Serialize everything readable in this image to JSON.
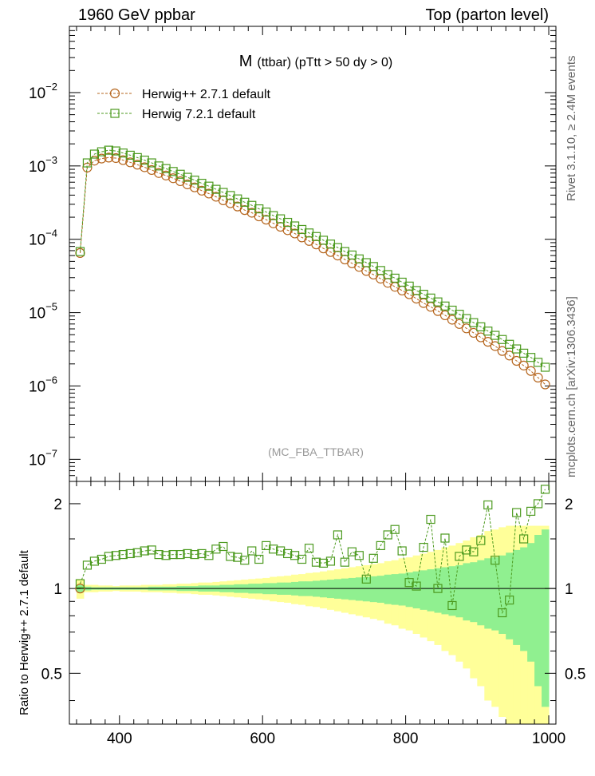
{
  "header": {
    "left": "1960 GeV ppbar",
    "right": "Top (parton level)"
  },
  "side_labels": {
    "rivet": "Rivet 3.1.10, ≥ 2.4M events",
    "site": "mcplots.cern.ch [arXiv:1306.3436]"
  },
  "colors": {
    "herwigpp": "#b5651d",
    "herwig7": "#4c9a1f",
    "band_inner": "#90f090",
    "band_outer": "#ffff99"
  },
  "chart_data": [
    {
      "type": "line",
      "title_main": "M",
      "title_rest": "(ttbar) (pTtt > 50 dy > 0)",
      "analysis_tag": "(MC_FBA_TTBAR)",
      "yscale": "log",
      "xlim": [
        330,
        1010
      ],
      "ylim": [
        5e-08,
        0.08
      ],
      "yticks": [
        {
          "value": 1e-07,
          "base": "10",
          "exp": "−7"
        },
        {
          "value": 1e-06,
          "base": "10",
          "exp": "−6"
        },
        {
          "value": 1e-05,
          "base": "10",
          "exp": "−5"
        },
        {
          "value": 0.0001,
          "base": "10",
          "exp": "−4"
        },
        {
          "value": 0.001,
          "base": "10",
          "exp": "−3"
        },
        {
          "value": 0.01,
          "base": "10",
          "exp": "−2"
        }
      ],
      "legend_position": "top-left",
      "x": [
        345,
        355,
        365,
        375,
        385,
        395,
        405,
        415,
        425,
        435,
        445,
        455,
        465,
        475,
        485,
        495,
        505,
        515,
        525,
        535,
        545,
        555,
        565,
        575,
        585,
        595,
        605,
        615,
        625,
        635,
        645,
        655,
        665,
        675,
        685,
        695,
        705,
        715,
        725,
        735,
        745,
        755,
        765,
        775,
        785,
        795,
        805,
        815,
        825,
        835,
        845,
        855,
        865,
        875,
        885,
        895,
        905,
        915,
        925,
        935,
        945,
        955,
        965,
        975,
        985,
        995
      ],
      "series": [
        {
          "name": "Herwig++ 2.7.1 default",
          "marker": "circle",
          "values": [
            6.5e-05,
            0.00095,
            0.00118,
            0.00126,
            0.0013,
            0.00128,
            0.0012,
            0.00112,
            0.00104,
            0.00096,
            0.00088,
            0.0008,
            0.00074,
            0.00068,
            0.00062,
            0.00056,
            0.00051,
            0.00046,
            0.00042,
            0.00038,
            0.00034,
            0.00031,
            0.00028,
            0.00025,
            0.00023,
            0.000205,
            0.000185,
            0.000165,
            0.000148,
            0.000133,
            0.00012,
            0.000106,
            9.5e-05,
            8.5e-05,
            7.5e-05,
            6.7e-05,
            6e-05,
            5.3e-05,
            4.7e-05,
            4.2e-05,
            3.7e-05,
            3.3e-05,
            2.9e-05,
            2.55e-05,
            2.25e-05,
            2e-05,
            1.78e-05,
            1.55e-05,
            1.35e-05,
            1.2e-05,
            1.05e-05,
            9.2e-06,
            8e-06,
            7e-06,
            6.1e-06,
            5.3e-06,
            4.6e-06,
            4e-06,
            3.5e-06,
            3e-06,
            2.6e-06,
            2.2e-06,
            1.9e-06,
            1.6e-06,
            1.3e-06,
            1.05e-06
          ]
        },
        {
          "name": "Herwig 7.2.1 default",
          "marker": "square",
          "values": [
            6.8e-05,
            0.0011,
            0.00145,
            0.00156,
            0.00164,
            0.0016,
            0.0015,
            0.0014,
            0.0013,
            0.0012,
            0.0011,
            0.001,
            0.00092,
            0.00084,
            0.00077,
            0.0007,
            0.00064,
            0.00058,
            0.00053,
            0.00048,
            0.000435,
            0.000395,
            0.000355,
            0.00032,
            0.00029,
            0.00026,
            0.000235,
            0.00021,
            0.00019,
            0.00017,
            0.000152,
            0.000136,
            0.000122,
            0.000109,
            9.7e-05,
            8.6e-05,
            7.7e-05,
            6.8e-05,
            6.1e-05,
            5.4e-05,
            4.8e-05,
            4.25e-05,
            3.75e-05,
            3.3e-05,
            2.95e-05,
            2.6e-05,
            2.3e-05,
            2e-05,
            1.78e-05,
            1.58e-05,
            1.4e-05,
            1.23e-05,
            1.08e-05,
            9.5e-06,
            8.3e-06,
            7.3e-06,
            6.4e-06,
            5.6e-06,
            4.9e-06,
            4.3e-06,
            3.7e-06,
            3.2e-06,
            2.8e-06,
            2.45e-06,
            2.1e-06,
            1.8e-06
          ]
        }
      ]
    },
    {
      "type": "line",
      "ylabel": "Ratio to Herwig++ 2.7.1 default",
      "xlim": [
        330,
        1010
      ],
      "ylim": [
        0.33,
        2.4
      ],
      "yticks": [
        0.5,
        1,
        2
      ],
      "yticklabels": [
        "0.5",
        "1",
        "2"
      ],
      "xticks": [
        400,
        600,
        800,
        1000
      ],
      "xticklabels": [
        "400",
        "600",
        "800",
        "1000"
      ],
      "x": [
        345,
        355,
        365,
        375,
        385,
        395,
        405,
        415,
        425,
        435,
        445,
        455,
        465,
        475,
        485,
        495,
        505,
        515,
        525,
        535,
        545,
        555,
        565,
        575,
        585,
        595,
        605,
        615,
        625,
        635,
        645,
        655,
        665,
        675,
        685,
        695,
        705,
        715,
        725,
        735,
        745,
        755,
        765,
        775,
        785,
        795,
        805,
        815,
        825,
        835,
        845,
        855,
        865,
        875,
        885,
        895,
        905,
        915,
        925,
        935,
        945,
        955,
        965,
        975,
        985,
        995
      ],
      "band_inner": [
        0.97,
        0.985,
        0.99,
        0.99,
        0.99,
        0.99,
        0.99,
        0.99,
        0.99,
        0.99,
        0.985,
        0.985,
        0.985,
        0.985,
        0.98,
        0.98,
        0.98,
        0.975,
        0.975,
        0.975,
        0.97,
        0.97,
        0.965,
        0.965,
        0.96,
        0.96,
        0.955,
        0.955,
        0.95,
        0.95,
        0.945,
        0.94,
        0.94,
        0.935,
        0.93,
        0.925,
        0.92,
        0.915,
        0.91,
        0.905,
        0.9,
        0.895,
        0.89,
        0.88,
        0.875,
        0.87,
        0.86,
        0.85,
        0.84,
        0.83,
        0.82,
        0.81,
        0.8,
        0.79,
        0.77,
        0.76,
        0.74,
        0.72,
        0.71,
        0.69,
        0.66,
        0.63,
        0.6,
        0.55,
        0.45,
        0.38
      ],
      "band_outer": [
        0.92,
        0.97,
        0.97,
        0.975,
        0.975,
        0.98,
        0.975,
        0.975,
        0.975,
        0.97,
        0.97,
        0.97,
        0.965,
        0.965,
        0.96,
        0.96,
        0.955,
        0.95,
        0.95,
        0.945,
        0.94,
        0.935,
        0.93,
        0.925,
        0.92,
        0.915,
        0.91,
        0.9,
        0.895,
        0.89,
        0.88,
        0.875,
        0.865,
        0.86,
        0.85,
        0.84,
        0.83,
        0.82,
        0.81,
        0.8,
        0.79,
        0.78,
        0.77,
        0.75,
        0.74,
        0.72,
        0.71,
        0.69,
        0.67,
        0.65,
        0.63,
        0.6,
        0.58,
        0.55,
        0.52,
        0.48,
        0.45,
        0.4,
        0.38,
        0.35,
        0.33,
        0.33,
        0.33,
        0.33,
        0.33,
        0.33
      ],
      "ratio": [
        1.04,
        1.21,
        1.25,
        1.27,
        1.3,
        1.31,
        1.32,
        1.33,
        1.34,
        1.36,
        1.37,
        1.32,
        1.31,
        1.32,
        1.32,
        1.33,
        1.32,
        1.33,
        1.31,
        1.38,
        1.41,
        1.3,
        1.29,
        1.26,
        1.36,
        1.27,
        1.42,
        1.38,
        1.36,
        1.33,
        1.31,
        1.27,
        1.39,
        1.24,
        1.23,
        1.25,
        1.55,
        1.24,
        1.35,
        1.31,
        1.08,
        1.28,
        1.42,
        1.55,
        1.62,
        1.36,
        1.05,
        1.02,
        1.4,
        1.76,
        1.0,
        1.51,
        0.87,
        1.3,
        1.37,
        1.35,
        1.48,
        1.98,
        1.26,
        0.82,
        0.91,
        1.86,
        1.5,
        1.88,
        2.0,
        2.25
      ]
    }
  ]
}
